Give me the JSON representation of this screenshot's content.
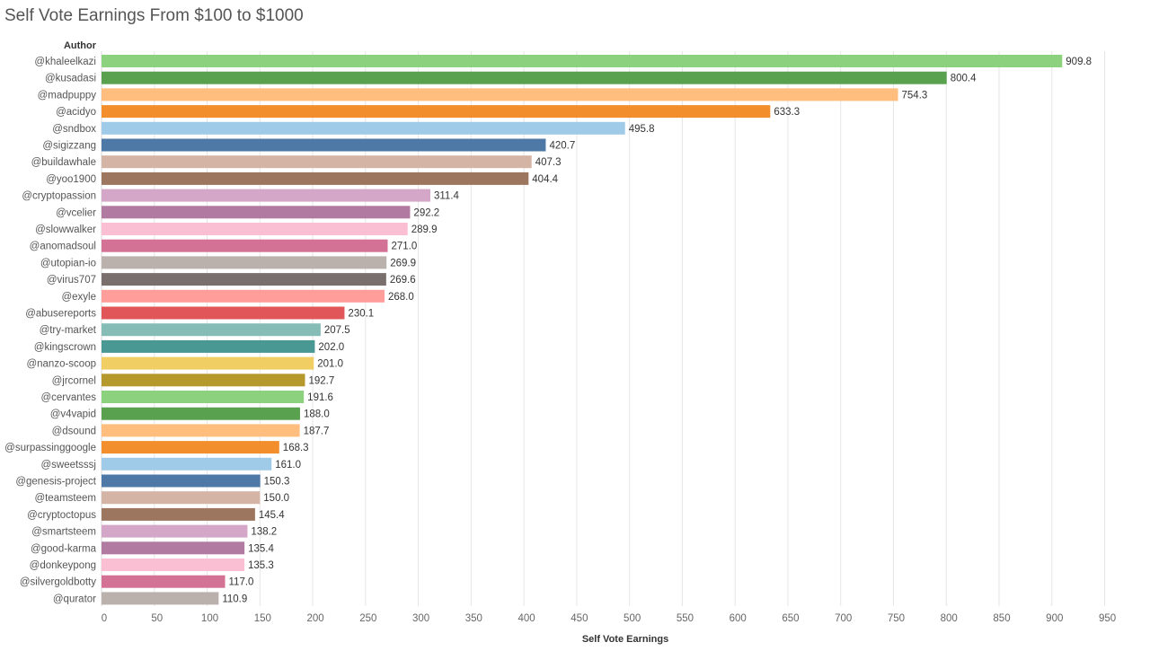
{
  "title": "Self Vote Earnings From $100 to $1000",
  "chart_data": {
    "type": "bar",
    "orientation": "horizontal",
    "title": "Self Vote Earnings From $100 to $1000",
    "ylabel": "Author",
    "xlabel": "Self Vote Earnings",
    "xlim": [
      0,
      1000
    ],
    "x_ticks": [
      0,
      50,
      100,
      150,
      200,
      250,
      300,
      350,
      400,
      450,
      500,
      550,
      600,
      650,
      700,
      750,
      800,
      850,
      900,
      950
    ],
    "grid": "vertical",
    "legend": "none",
    "categories": [
      "@khaleelkazi",
      "@kusadasi",
      "@madpuppy",
      "@acidyo",
      "@sndbox",
      "@sigizzang",
      "@buildawhale",
      "@yoo1900",
      "@cryptopassion",
      "@vcelier",
      "@slowwalker",
      "@anomadsoul",
      "@utopian-io",
      "@virus707",
      "@exyle",
      "@abusereports",
      "@try-market",
      "@kingscrown",
      "@nanzo-scoop",
      "@jrcornel",
      "@cervantes",
      "@v4vapid",
      "@dsound",
      "@surpassinggoogle",
      "@sweetsssj",
      "@genesis-project",
      "@teamsteem",
      "@cryptoctopus",
      "@smartsteem",
      "@good-karma",
      "@donkeypong",
      "@silvergoldbotty",
      "@qurator"
    ],
    "values": [
      909.8,
      800.4,
      754.3,
      633.3,
      495.8,
      420.7,
      407.3,
      404.4,
      311.4,
      292.2,
      289.9,
      271.0,
      269.9,
      269.6,
      268.0,
      230.1,
      207.5,
      202.0,
      201.0,
      192.7,
      191.6,
      188.0,
      187.7,
      168.3,
      161.0,
      150.3,
      150.0,
      145.4,
      138.2,
      135.4,
      135.3,
      117.0,
      110.9
    ],
    "value_labels": [
      "909.8",
      "800.4",
      "754.3",
      "633.3",
      "495.8",
      "420.7",
      "407.3",
      "404.4",
      "311.4",
      "292.2",
      "289.9",
      "271.0",
      "269.9",
      "269.6",
      "268.0",
      "230.1",
      "207.5",
      "202.0",
      "201.0",
      "192.7",
      "191.6",
      "188.0",
      "187.7",
      "168.3",
      "161.0",
      "150.3",
      "150.0",
      "145.4",
      "138.2",
      "135.4",
      "135.3",
      "117.0",
      "110.9"
    ],
    "colors": [
      "#8cd17d",
      "#59a14f",
      "#ffbe7d",
      "#f28e2b",
      "#a0cbe8",
      "#4e79a7",
      "#d4b4a4",
      "#9d7660",
      "#d4a6c8",
      "#b07aa1",
      "#fabfd2",
      "#d37295",
      "#bab0ac",
      "#79706e",
      "#ff9d9a",
      "#e15759",
      "#86bcb6",
      "#499894",
      "#f1ce63",
      "#b6992d",
      "#8cd17d",
      "#59a14f",
      "#ffbe7d",
      "#f28e2b",
      "#a0cbe8",
      "#4e79a7",
      "#d4b4a4",
      "#9d7660",
      "#d4a6c8",
      "#b07aa1",
      "#fabfd2",
      "#d37295",
      "#bab0ac"
    ]
  }
}
